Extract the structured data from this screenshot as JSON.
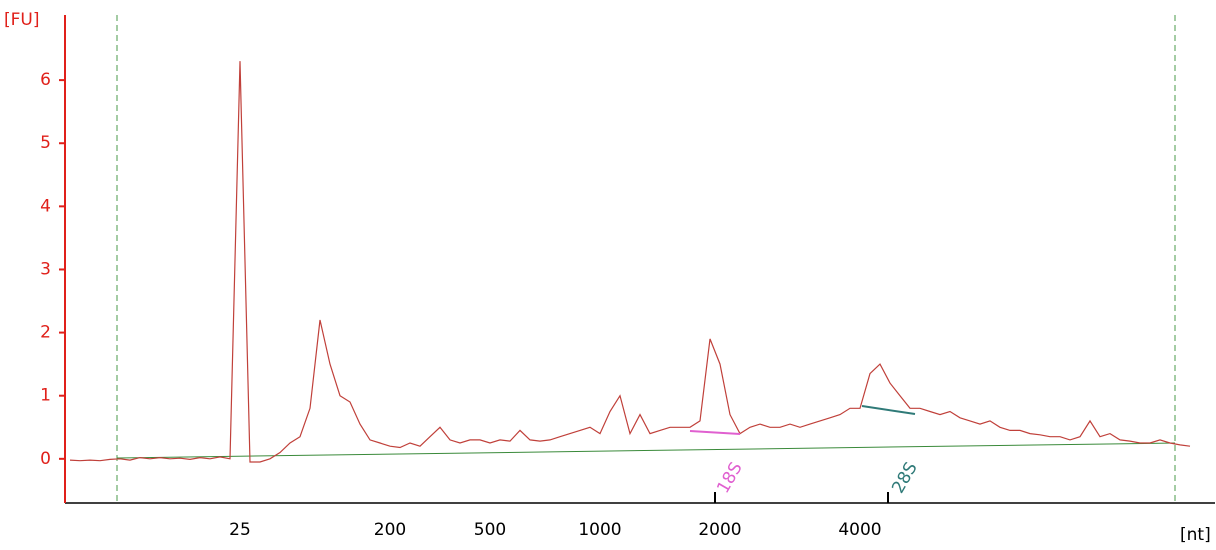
{
  "chart_data": {
    "type": "line",
    "y_label": "[FU]",
    "x_label": "[nt]",
    "color": "#c0403a",
    "axis_color": "#e0201a",
    "ylim": [
      -0.7,
      7.0
    ],
    "yticks": [
      0,
      1,
      2,
      3,
      4,
      5,
      6
    ],
    "categories": [
      null,
      null,
      null,
      null,
      null,
      null,
      null,
      null,
      null,
      null,
      null,
      null,
      null,
      null,
      null,
      null,
      null,
      "25",
      null,
      null,
      null,
      null,
      null,
      null,
      null,
      null,
      null,
      null,
      null,
      null,
      null,
      null,
      "200",
      null,
      null,
      null,
      null,
      null,
      null,
      null,
      null,
      null,
      "500",
      null,
      null,
      null,
      null,
      null,
      null,
      null,
      null,
      null,
      null,
      "1000",
      null,
      null,
      null,
      null,
      null,
      null,
      null,
      null,
      null,
      null,
      null,
      "2000",
      null,
      null,
      null,
      null,
      null,
      null,
      null,
      null,
      null,
      null,
      null,
      null,
      null,
      "4000",
      null,
      null,
      null,
      null,
      null,
      null,
      null,
      null,
      null,
      null,
      null,
      null,
      null,
      null,
      null,
      null,
      null,
      null,
      null,
      null,
      null,
      null,
      null,
      null,
      null,
      null,
      null,
      null,
      null,
      null,
      null,
      null,
      null
    ],
    "values": [
      -0.02,
      -0.03,
      -0.02,
      -0.03,
      -0.01,
      0.0,
      -0.02,
      0.02,
      0.0,
      0.02,
      0.0,
      0.01,
      -0.01,
      0.02,
      0.0,
      0.03,
      0.0,
      6.3,
      -0.05,
      -0.05,
      0.0,
      0.1,
      0.25,
      0.35,
      0.8,
      2.2,
      1.5,
      1.0,
      0.9,
      0.55,
      0.3,
      0.25,
      0.2,
      0.18,
      0.25,
      0.2,
      0.35,
      0.5,
      0.3,
      0.25,
      0.3,
      0.3,
      0.25,
      0.3,
      0.28,
      0.45,
      0.3,
      0.28,
      0.3,
      0.35,
      0.4,
      0.45,
      0.5,
      0.4,
      0.75,
      1.0,
      0.4,
      0.7,
      0.4,
      0.45,
      0.5,
      0.5,
      0.5,
      0.6,
      1.9,
      1.5,
      0.7,
      0.4,
      0.5,
      0.55,
      0.5,
      0.5,
      0.55,
      0.5,
      0.55,
      0.6,
      0.65,
      0.7,
      0.8,
      0.8,
      1.35,
      1.5,
      1.2,
      1.0,
      0.8,
      0.8,
      0.75,
      0.7,
      0.75,
      0.65,
      0.6,
      0.55,
      0.6,
      0.5,
      0.45,
      0.45,
      0.4,
      0.38,
      0.35,
      0.35,
      0.3,
      0.35,
      0.6,
      0.35,
      0.4,
      0.3,
      0.28,
      0.25,
      0.25,
      0.3,
      0.25,
      0.22,
      0.2
    ],
    "annotations": [
      {
        "label": "18S",
        "color": "#e060d0"
      },
      {
        "label": "28S",
        "color": "#2f7a78"
      }
    ]
  }
}
